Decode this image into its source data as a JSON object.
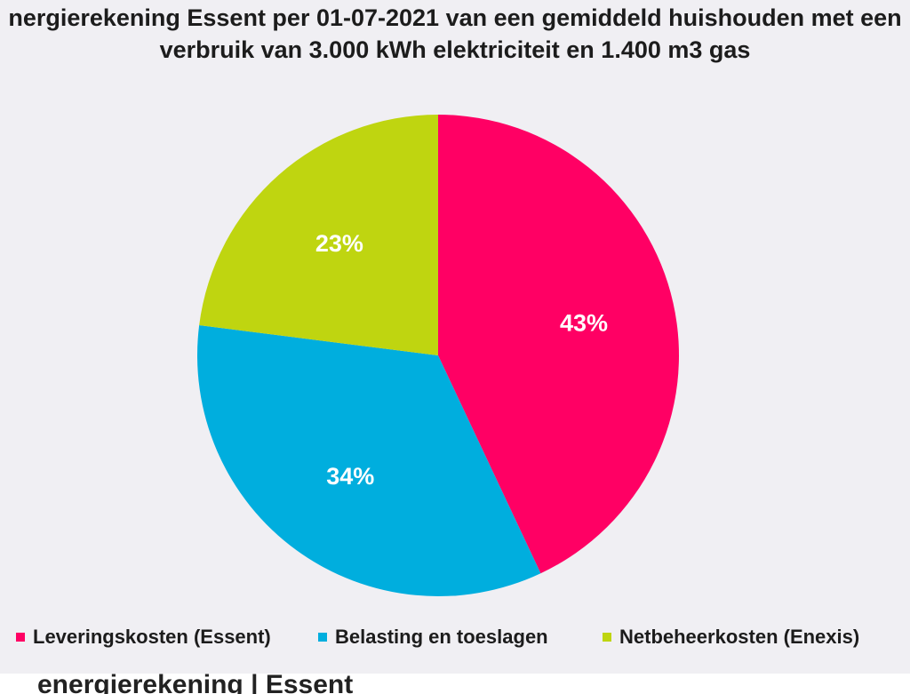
{
  "chart_data": {
    "type": "pie",
    "title_lines": [
      "nergierekening Essent per 01-07-2021 van een gemiddeld huishouden met een",
      "verbruik van 3.000 kWh elektriciteit en 1.400 m3 gas"
    ],
    "slices": [
      {
        "label": "Leveringskosten (Essent)",
        "value": 43,
        "display": "43%",
        "color": "#ff0064"
      },
      {
        "label": "Belasting en toeslagen",
        "value": 34,
        "display": "34%",
        "color": "#00aede"
      },
      {
        "label": "Netbeheerkosten (Enexis)",
        "value": 23,
        "display": "23%",
        "color": "#bfd510"
      }
    ],
    "start_angle_deg": 0,
    "direction": "clockwise",
    "legend_position": "bottom"
  },
  "footer": {
    "partial_text": "energierekening | Essent"
  }
}
